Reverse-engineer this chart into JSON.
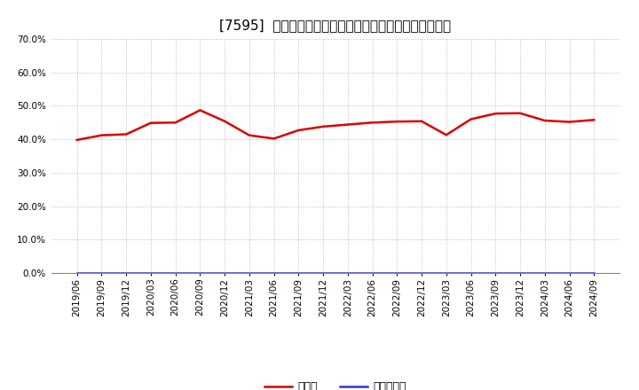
{
  "title": "[7595]  現顔金、有利子負債の総資産に対する比率の推移",
  "x_labels": [
    "2019/06",
    "2019/09",
    "2019/12",
    "2020/03",
    "2020/06",
    "2020/09",
    "2020/12",
    "2021/03",
    "2021/06",
    "2021/09",
    "2021/12",
    "2022/03",
    "2022/06",
    "2022/09",
    "2022/12",
    "2023/03",
    "2023/06",
    "2023/09",
    "2023/12",
    "2024/03",
    "2024/06",
    "2024/09"
  ],
  "cash_values": [
    39.8,
    41.2,
    41.5,
    44.9,
    45.0,
    48.7,
    45.4,
    41.2,
    40.2,
    42.7,
    43.8,
    44.4,
    45.0,
    45.3,
    45.4,
    41.3,
    46.0,
    47.7,
    47.8,
    45.6,
    45.2,
    45.8
  ],
  "debt_values": [
    0.0,
    0.0,
    0.0,
    0.0,
    0.0,
    0.0,
    0.0,
    0.0,
    0.0,
    0.0,
    0.0,
    0.0,
    0.0,
    0.0,
    0.0,
    0.0,
    0.0,
    0.0,
    0.0,
    0.0,
    0.0,
    0.0
  ],
  "cash_color": "#dd0000",
  "debt_color": "#3333cc",
  "cash_label": "現顔金",
  "debt_label": "有利子負債",
  "ylim": [
    0.0,
    70.0
  ],
  "yticks": [
    0.0,
    10.0,
    20.0,
    30.0,
    40.0,
    50.0,
    60.0,
    70.0
  ],
  "background_color": "#ffffff",
  "plot_bg_color": "#ffffff",
  "grid_color": "#bbbbbb",
  "title_fontsize": 11,
  "legend_fontsize": 9,
  "tick_fontsize": 7.5,
  "line_width": 1.8
}
